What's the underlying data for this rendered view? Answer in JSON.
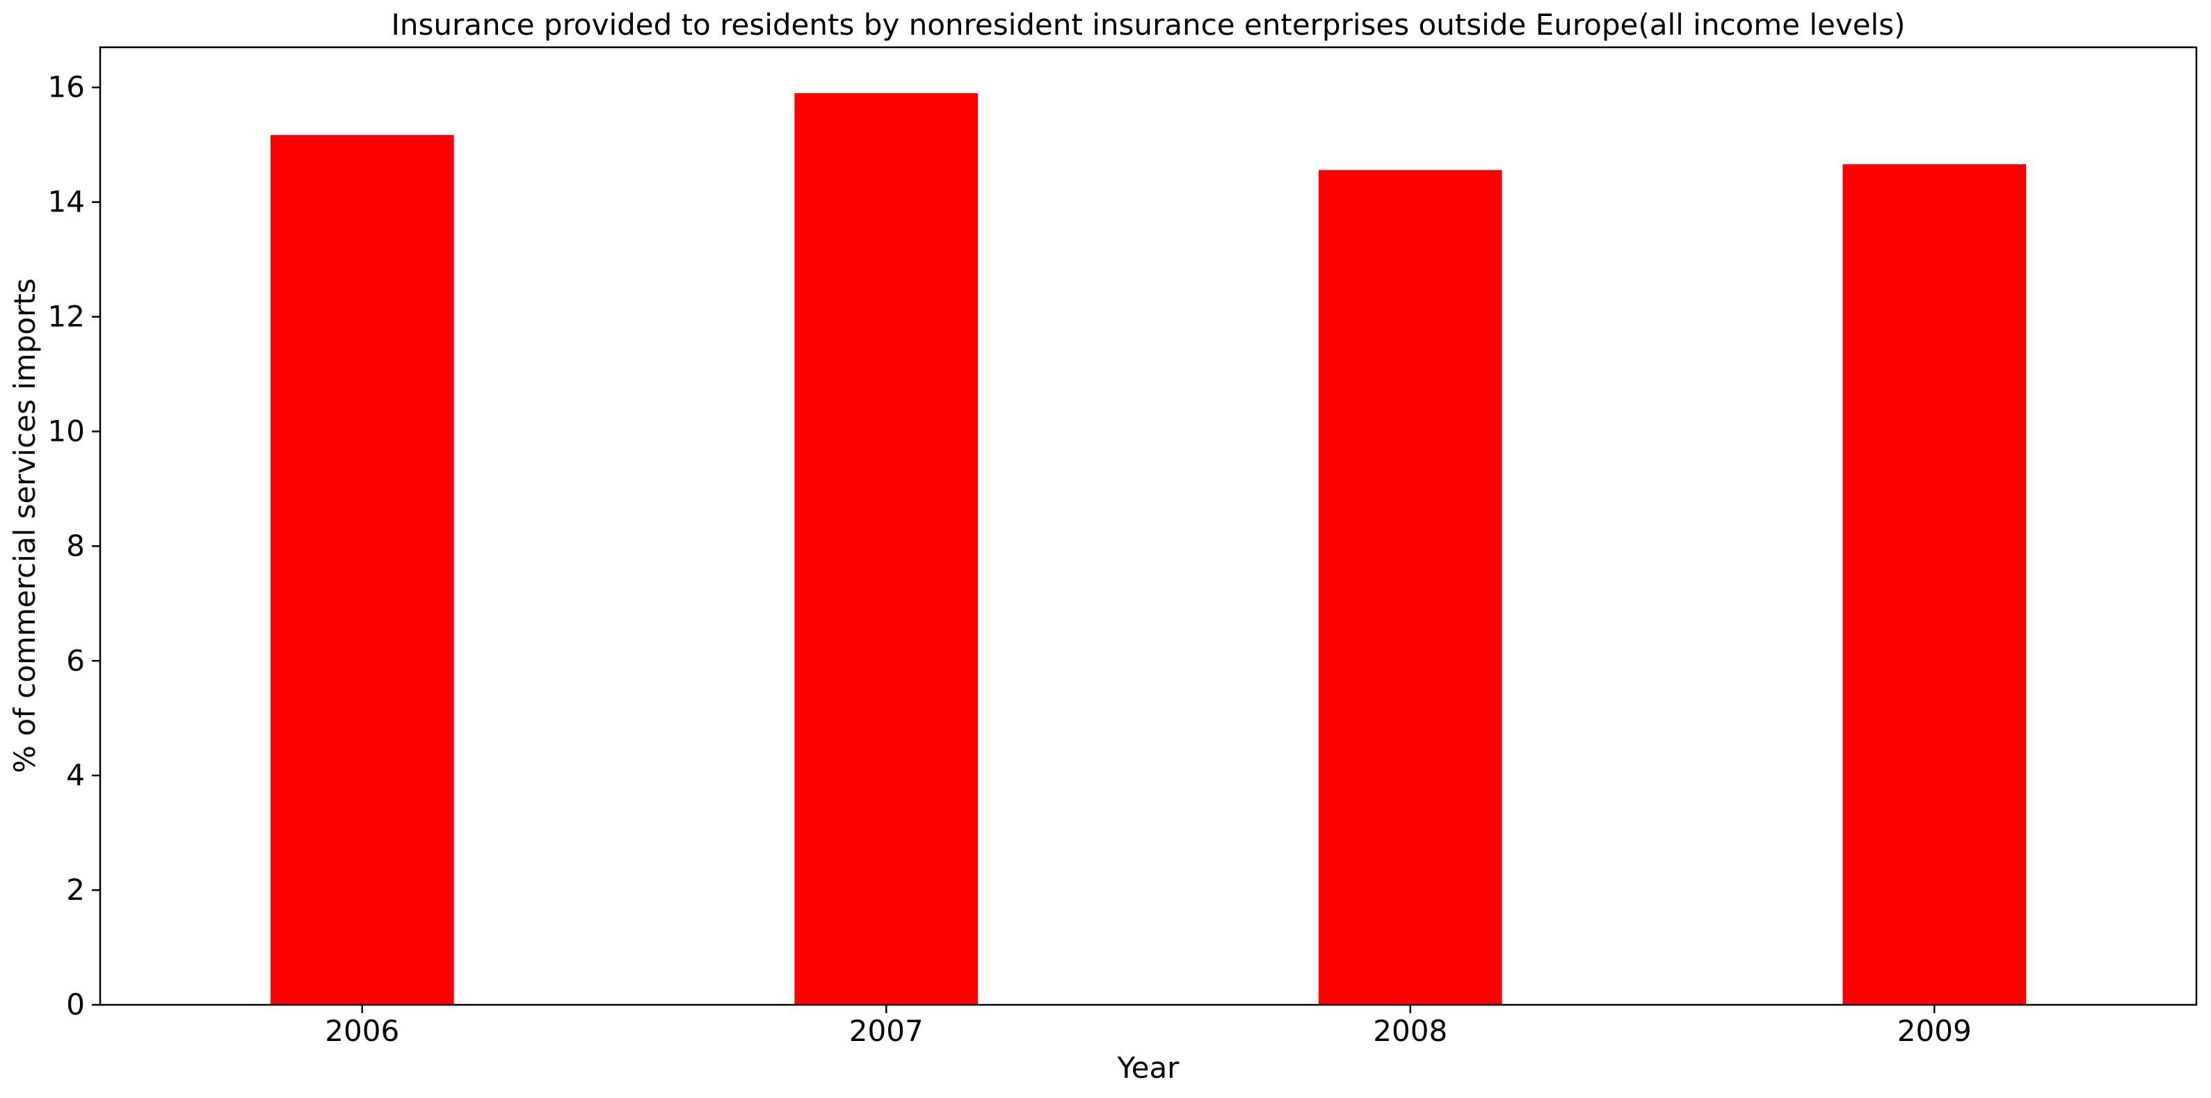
{
  "chart_data": {
    "type": "bar",
    "title": "Insurance provided to residents by nonresident insurance enterprises outside Europe(all income levels)",
    "xlabel": "Year",
    "ylabel": "% of commercial services imports",
    "categories": [
      "2006",
      "2007",
      "2008",
      "2009"
    ],
    "values": [
      15.17,
      15.9,
      14.56,
      14.66
    ],
    "ylim": [
      0,
      16.7
    ],
    "yticks": [
      0,
      2,
      4,
      6,
      8,
      10,
      12,
      14,
      16
    ],
    "bar_color": "#ff0000",
    "grid": false,
    "legend": "none"
  }
}
